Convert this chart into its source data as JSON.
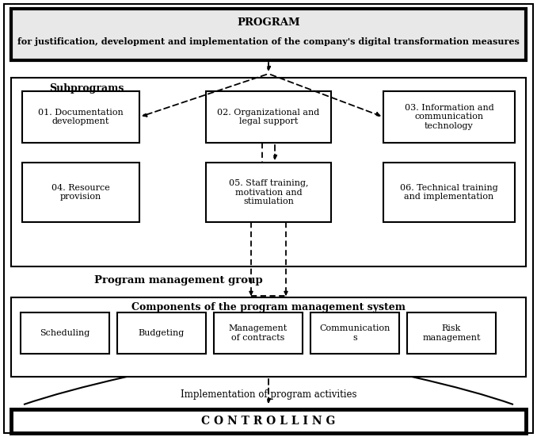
{
  "title_line1": "PROGRAM",
  "title_line2": "for justification, development and implementation of the company's digital transformation measures",
  "subprograms_label": "Subprograms",
  "box01": "01. Documentation\ndevelopment",
  "box02": "02. Organizational and\nlegal support",
  "box03": "03. Information and\ncommunication\ntechnology",
  "box04": "04. Resource\nprovision",
  "box05": "05. Staff training,\nmotivation and\nstimulation",
  "box06": "06. Technical training\nand implementation",
  "pmg_label": "Program management group",
  "components_label": "Components of the program management system",
  "comp1": "Scheduling",
  "comp2": "Budgeting",
  "comp3": "Management\nof contracts",
  "comp4": "Communication\ns",
  "comp5": "Risk\nmanagement",
  "impl_label": "Implementation of program activities",
  "controlling_label": "C O N T R O L L I N G",
  "bg_color": "#ffffff",
  "title_bg": "#e8e8e8"
}
